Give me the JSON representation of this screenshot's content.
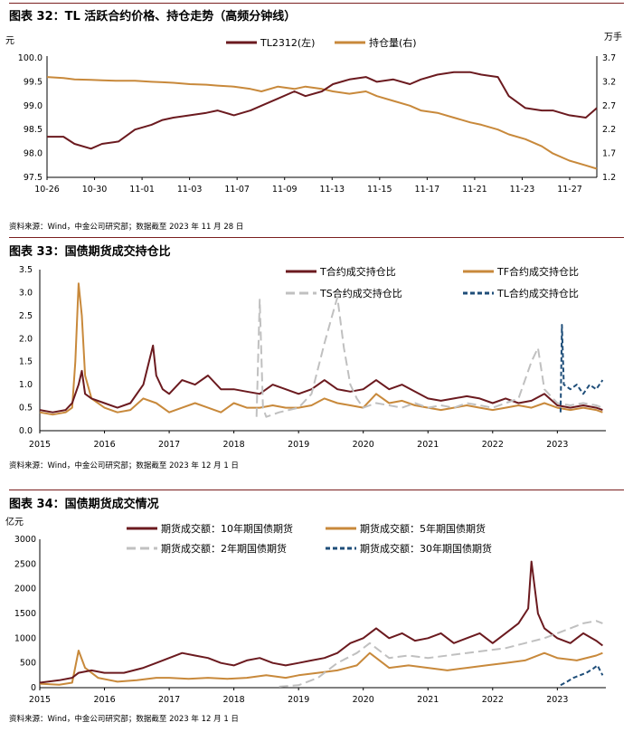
{
  "figures": [
    {
      "title": "图表 32：TL 活跃合约价格、持仓走势（高频分钟线）",
      "source": "资料来源：Wind，中金公司研究部；数据截至 2023 年 11 月 28 日"
    },
    {
      "title": "图表 33：国债期货成交持仓比",
      "source": "资料来源：Wind，中金公司研究部；数据截至 2023 年 12 月 1 日"
    },
    {
      "title": "图表 34：国债期货成交情况",
      "source": "资料来源：Wind，中金公司研究部；数据截至 2023 年 12 月 1 日"
    }
  ],
  "chart_data": [
    {
      "type": "line",
      "title": "图表 32：TL 活跃合约价格、持仓走势（高频分钟线）",
      "ylabel": "元",
      "y2label": "万手",
      "x_tick_labels": [
        "10-26",
        "10-30",
        "11-01",
        "11-03",
        "11-07",
        "11-09",
        "11-13",
        "11-15",
        "11-17",
        "11-21",
        "11-23",
        "11-27"
      ],
      "ylim": [
        97.5,
        100.0
      ],
      "y_ticks": [
        "97.5",
        "98.0",
        "98.5",
        "99.0",
        "99.5",
        "100.0"
      ],
      "y2lim": [
        1.2,
        3.7
      ],
      "y2_ticks": [
        "1.2",
        "1.7",
        "2.2",
        "2.7",
        "3.2",
        "3.7"
      ],
      "series": [
        {
          "name": "TL2312(左)",
          "axis": "left",
          "color": "#6b1a1f",
          "dash": "solid",
          "x": [
            0,
            3,
            5,
            8,
            10,
            13,
            16,
            19,
            21,
            23,
            26,
            29,
            31,
            34,
            37,
            39,
            42,
            45,
            47,
            50,
            52,
            55,
            58,
            60,
            63,
            66,
            68,
            71,
            74,
            77,
            79,
            82,
            84,
            87,
            90,
            92,
            95,
            98,
            100
          ],
          "values": [
            98.35,
            98.35,
            98.2,
            98.1,
            98.2,
            98.25,
            98.5,
            98.6,
            98.7,
            98.75,
            98.8,
            98.85,
            98.9,
            98.8,
            98.9,
            99.0,
            99.15,
            99.3,
            99.2,
            99.3,
            99.45,
            99.55,
            99.6,
            99.5,
            99.55,
            99.45,
            99.55,
            99.65,
            99.7,
            99.7,
            99.65,
            99.6,
            99.2,
            98.95,
            98.9,
            98.9,
            98.8,
            98.75,
            98.95
          ]
        },
        {
          "name": "持仓量(右)",
          "axis": "right",
          "color": "#c8893b",
          "dash": "solid",
          "x": [
            0,
            3,
            5,
            8,
            10,
            13,
            16,
            19,
            21,
            23,
            26,
            29,
            31,
            34,
            37,
            39,
            42,
            45,
            47,
            50,
            52,
            55,
            58,
            60,
            63,
            66,
            68,
            71,
            74,
            77,
            79,
            82,
            84,
            87,
            90,
            92,
            95,
            98,
            100
          ],
          "values": [
            3.3,
            3.28,
            3.25,
            3.24,
            3.23,
            3.22,
            3.22,
            3.2,
            3.19,
            3.18,
            3.15,
            3.14,
            3.12,
            3.1,
            3.05,
            3.0,
            3.1,
            3.05,
            3.1,
            3.05,
            3.0,
            2.95,
            3.0,
            2.9,
            2.8,
            2.7,
            2.6,
            2.55,
            2.45,
            2.35,
            2.3,
            2.2,
            2.1,
            2.0,
            1.85,
            1.7,
            1.55,
            1.45,
            1.38
          ]
        }
      ]
    },
    {
      "type": "line",
      "title": "图表 33：国债期货成交持仓比",
      "x_tick_labels": [
        "2015",
        "2016",
        "2017",
        "2018",
        "2019",
        "2020",
        "2021",
        "2022",
        "2023"
      ],
      "ylim": [
        0.0,
        3.5
      ],
      "y_ticks": [
        "0.0",
        "0.5",
        "1.0",
        "1.5",
        "2.0",
        "2.5",
        "3.0",
        "3.5"
      ],
      "series": [
        {
          "name": "T合约成交持仓比",
          "color": "#6b1a1f",
          "dash": "solid",
          "x": [
            2015.0,
            2015.2,
            2015.4,
            2015.5,
            2015.6,
            2015.65,
            2015.7,
            2015.8,
            2016.0,
            2016.2,
            2016.4,
            2016.6,
            2016.75,
            2016.8,
            2016.9,
            2017.0,
            2017.2,
            2017.4,
            2017.6,
            2017.8,
            2018.0,
            2018.2,
            2018.4,
            2018.6,
            2018.8,
            2019.0,
            2019.2,
            2019.4,
            2019.6,
            2019.8,
            2020.0,
            2020.2,
            2020.4,
            2020.6,
            2020.8,
            2021.0,
            2021.2,
            2021.4,
            2021.6,
            2021.8,
            2022.0,
            2022.2,
            2022.4,
            2022.6,
            2022.8,
            2023.0,
            2023.2,
            2023.4,
            2023.6,
            2023.7
          ],
          "values": [
            0.45,
            0.4,
            0.45,
            0.6,
            1.0,
            1.3,
            0.8,
            0.7,
            0.6,
            0.5,
            0.6,
            1.0,
            1.85,
            1.2,
            0.9,
            0.8,
            1.1,
            1.0,
            1.2,
            0.9,
            0.9,
            0.85,
            0.8,
            1.0,
            0.9,
            0.8,
            0.9,
            1.1,
            0.9,
            0.85,
            0.9,
            1.1,
            0.9,
            1.0,
            0.85,
            0.7,
            0.65,
            0.7,
            0.75,
            0.7,
            0.6,
            0.7,
            0.6,
            0.65,
            0.8,
            0.55,
            0.5,
            0.55,
            0.5,
            0.45
          ]
        },
        {
          "name": "TF合约成交持仓比",
          "color": "#c8893b",
          "dash": "solid",
          "x": [
            2015.0,
            2015.2,
            2015.4,
            2015.5,
            2015.55,
            2015.6,
            2015.65,
            2015.7,
            2015.8,
            2016.0,
            2016.2,
            2016.4,
            2016.6,
            2016.8,
            2017.0,
            2017.2,
            2017.4,
            2017.6,
            2017.8,
            2018.0,
            2018.2,
            2018.4,
            2018.6,
            2018.8,
            2019.0,
            2019.2,
            2019.4,
            2019.6,
            2019.8,
            2020.0,
            2020.2,
            2020.4,
            2020.6,
            2020.8,
            2021.0,
            2021.2,
            2021.4,
            2021.6,
            2021.8,
            2022.0,
            2022.2,
            2022.4,
            2022.6,
            2022.8,
            2023.0,
            2023.2,
            2023.4,
            2023.6,
            2023.7
          ],
          "values": [
            0.4,
            0.35,
            0.4,
            0.5,
            1.5,
            3.2,
            2.5,
            1.2,
            0.7,
            0.5,
            0.4,
            0.45,
            0.7,
            0.6,
            0.4,
            0.5,
            0.6,
            0.5,
            0.4,
            0.6,
            0.5,
            0.5,
            0.55,
            0.5,
            0.5,
            0.55,
            0.7,
            0.6,
            0.55,
            0.5,
            0.8,
            0.6,
            0.65,
            0.55,
            0.5,
            0.45,
            0.5,
            0.55,
            0.5,
            0.45,
            0.5,
            0.55,
            0.5,
            0.6,
            0.5,
            0.45,
            0.5,
            0.45,
            0.4
          ]
        },
        {
          "name": "TS合约成交持仓比",
          "color": "#c0c0c0",
          "dash": "long-dash",
          "x": [
            2018.35,
            2018.4,
            2018.45,
            2018.5,
            2018.7,
            2019.0,
            2019.2,
            2019.4,
            2019.5,
            2019.6,
            2019.7,
            2019.8,
            2019.9,
            2020.0,
            2020.2,
            2020.4,
            2020.6,
            2020.8,
            2021.0,
            2021.2,
            2021.4,
            2021.6,
            2021.8,
            2022.0,
            2022.2,
            2022.4,
            2022.6,
            2022.7,
            2022.8,
            2023.0,
            2023.2,
            2023.4,
            2023.6,
            2023.7
          ],
          "values": [
            0.3,
            2.85,
            0.5,
            0.3,
            0.4,
            0.5,
            0.8,
            1.9,
            2.4,
            2.9,
            1.8,
            1.0,
            0.7,
            0.5,
            0.6,
            0.55,
            0.5,
            0.6,
            0.5,
            0.55,
            0.5,
            0.6,
            0.55,
            0.5,
            0.6,
            0.7,
            1.5,
            1.8,
            0.9,
            0.6,
            0.55,
            0.6,
            0.55,
            0.5
          ]
        },
        {
          "name": "TL合约成交持仓比",
          "color": "#1f4e79",
          "dash": "dash",
          "x": [
            2023.05,
            2023.07,
            2023.1,
            2023.2,
            2023.3,
            2023.4,
            2023.5,
            2023.6,
            2023.7
          ],
          "values": [
            0.4,
            2.3,
            1.0,
            0.9,
            1.0,
            0.8,
            1.0,
            0.9,
            1.1
          ]
        }
      ]
    },
    {
      "type": "line",
      "title": "图表 34：国债期货成交情况",
      "ylabel": "亿元",
      "x_tick_labels": [
        "2015",
        "2016",
        "2017",
        "2018",
        "2019",
        "2020",
        "2021",
        "2022",
        "2023"
      ],
      "ylim": [
        0,
        3000
      ],
      "y_ticks": [
        "0",
        "500",
        "1000",
        "1500",
        "2000",
        "2500",
        "3000"
      ],
      "series": [
        {
          "name": "期货成交额：10年期国债期货",
          "color": "#6b1a1f",
          "dash": "solid",
          "x": [
            2015.0,
            2015.3,
            2015.5,
            2015.6,
            2015.8,
            2016.0,
            2016.3,
            2016.6,
            2016.8,
            2017.0,
            2017.2,
            2017.4,
            2017.6,
            2017.8,
            2018.0,
            2018.2,
            2018.4,
            2018.6,
            2018.8,
            2019.0,
            2019.2,
            2019.4,
            2019.6,
            2019.8,
            2020.0,
            2020.2,
            2020.4,
            2020.6,
            2020.8,
            2021.0,
            2021.2,
            2021.4,
            2021.6,
            2021.8,
            2022.0,
            2022.2,
            2022.4,
            2022.55,
            2022.6,
            2022.7,
            2022.8,
            2023.0,
            2023.2,
            2023.4,
            2023.6,
            2023.7
          ],
          "values": [
            100,
            150,
            200,
            300,
            350,
            300,
            300,
            400,
            500,
            600,
            700,
            650,
            600,
            500,
            450,
            550,
            600,
            500,
            450,
            500,
            550,
            600,
            700,
            900,
            1000,
            1200,
            1000,
            1100,
            950,
            1000,
            1100,
            900,
            1000,
            1100,
            900,
            1100,
            1300,
            1600,
            2550,
            1500,
            1200,
            1000,
            900,
            1100,
            950,
            850
          ]
        },
        {
          "name": "期货成交额：5年期国债期货",
          "color": "#c8893b",
          "dash": "solid",
          "x": [
            2015.0,
            2015.3,
            2015.5,
            2015.6,
            2015.7,
            2015.9,
            2016.2,
            2016.5,
            2016.8,
            2017.0,
            2017.3,
            2017.6,
            2017.9,
            2018.2,
            2018.5,
            2018.8,
            2019.0,
            2019.3,
            2019.6,
            2019.9,
            2020.1,
            2020.4,
            2020.7,
            2021.0,
            2021.3,
            2021.6,
            2021.9,
            2022.2,
            2022.5,
            2022.8,
            2023.0,
            2023.3,
            2023.6,
            2023.7
          ],
          "values": [
            80,
            60,
            100,
            750,
            400,
            200,
            120,
            150,
            200,
            200,
            180,
            200,
            180,
            200,
            250,
            200,
            250,
            300,
            350,
            450,
            700,
            400,
            450,
            400,
            350,
            400,
            450,
            500,
            550,
            700,
            600,
            550,
            650,
            700
          ]
        },
        {
          "name": "期货成交额：2年期国债期货",
          "color": "#c0c0c0",
          "dash": "long-dash",
          "x": [
            2018.7,
            2019.0,
            2019.3,
            2019.6,
            2019.9,
            2020.1,
            2020.4,
            2020.7,
            2021.0,
            2021.3,
            2021.6,
            2021.9,
            2022.2,
            2022.5,
            2022.8,
            2023.0,
            2023.2,
            2023.4,
            2023.6,
            2023.7
          ],
          "values": [
            20,
            50,
            200,
            500,
            700,
            900,
            600,
            650,
            600,
            650,
            700,
            750,
            800,
            900,
            1000,
            1100,
            1200,
            1300,
            1350,
            1300
          ]
        },
        {
          "name": "期货成交额：30年期国债期货",
          "color": "#1f4e79",
          "dash": "dash",
          "x": [
            2023.05,
            2023.15,
            2023.25,
            2023.35,
            2023.45,
            2023.55,
            2023.62,
            2023.7
          ],
          "values": [
            50,
            120,
            200,
            250,
            300,
            380,
            450,
            250
          ]
        }
      ]
    }
  ]
}
